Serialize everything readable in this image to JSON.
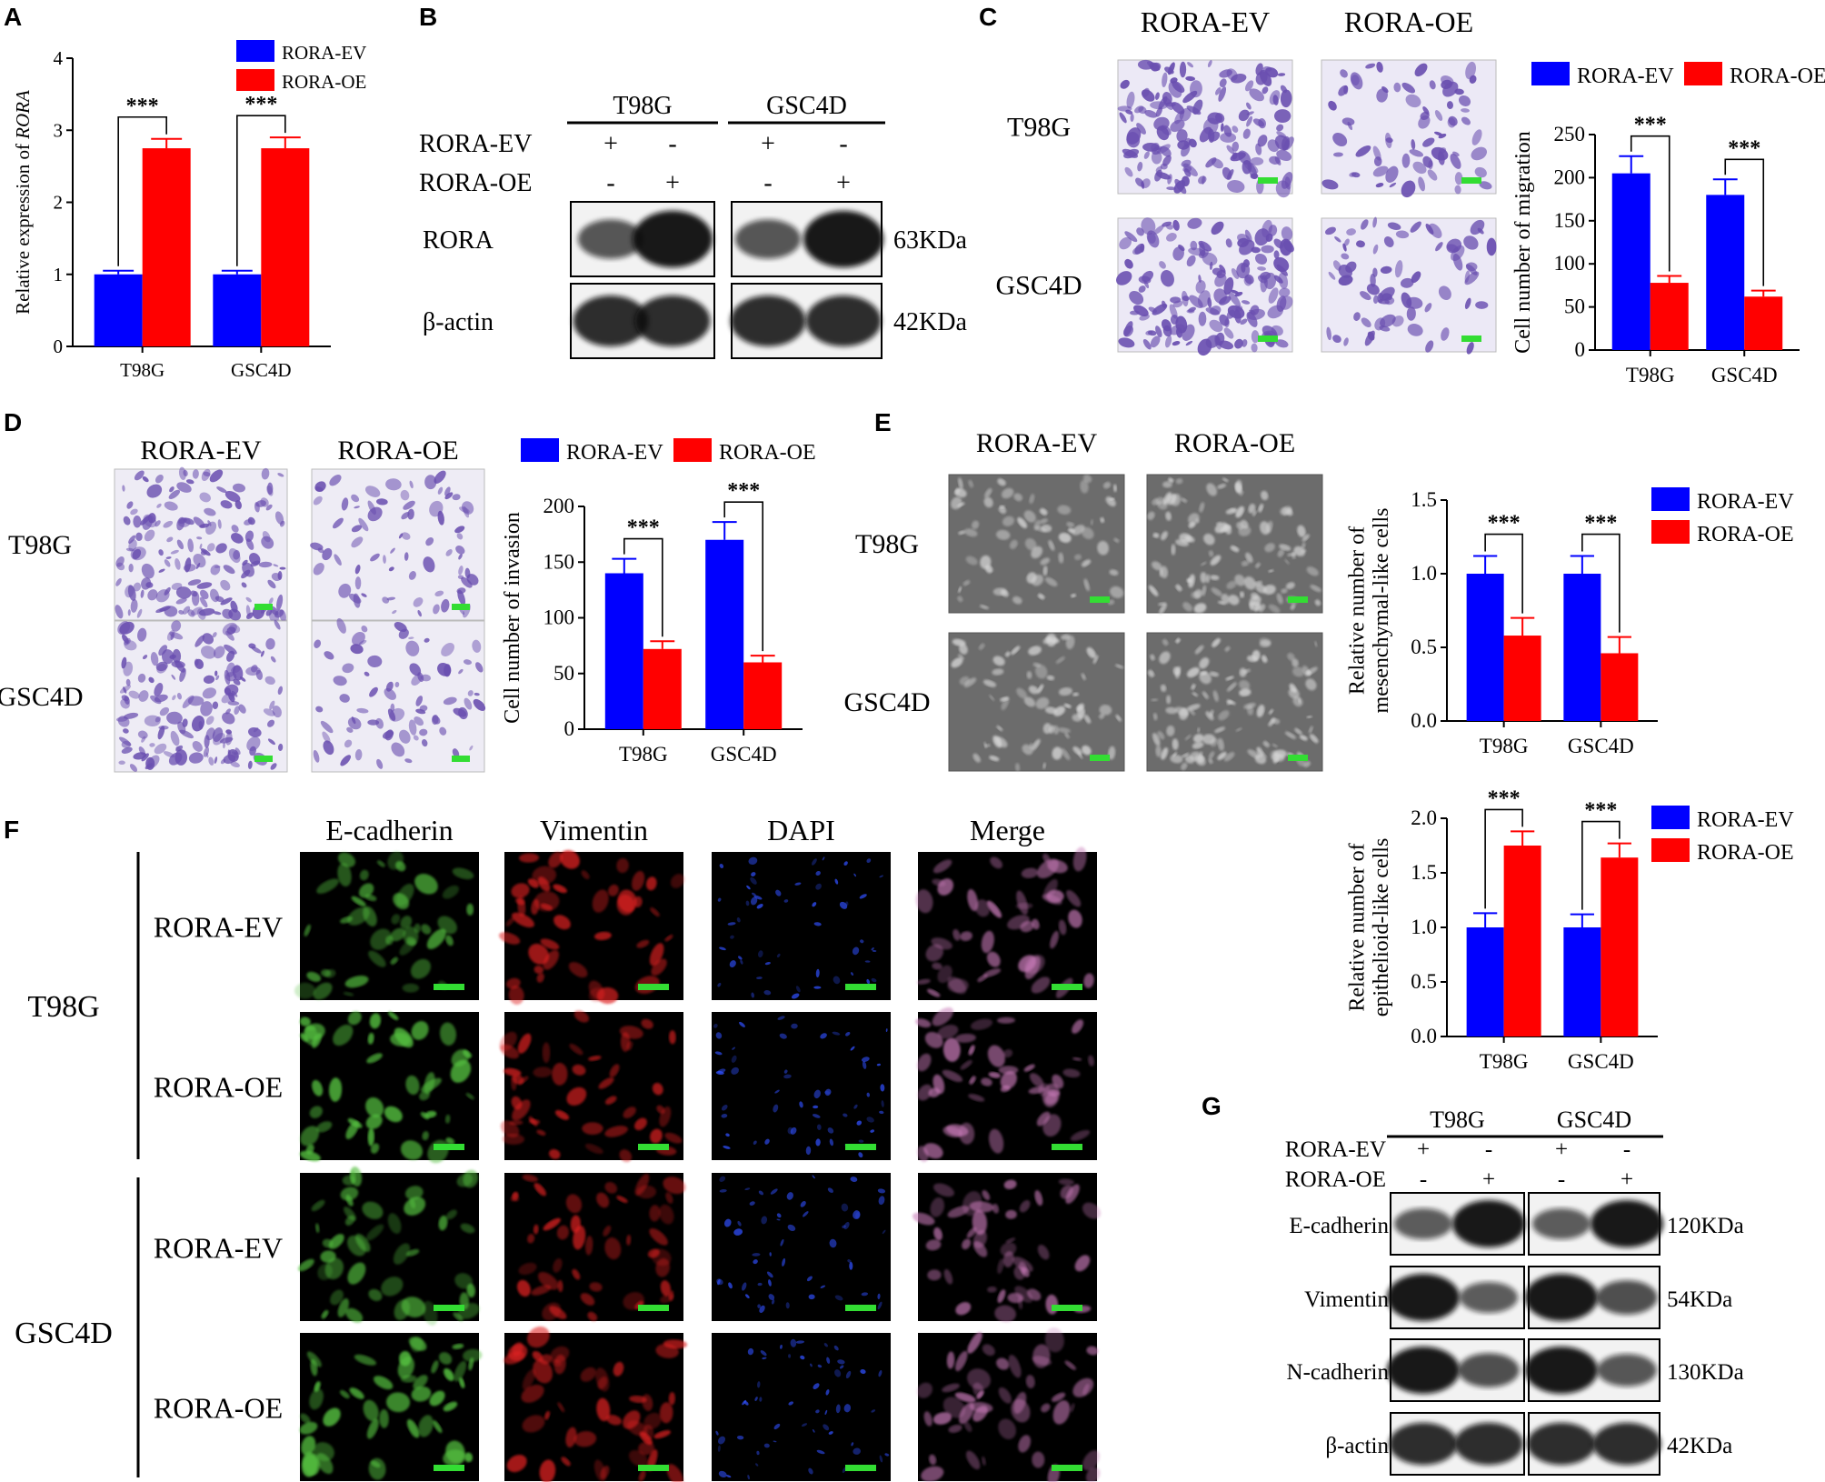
{
  "panel_letters": [
    "A",
    "B",
    "C",
    "D",
    "E",
    "F",
    "G"
  ],
  "colors": {
    "ev": "#0000ff",
    "oe": "#ff0000",
    "scale_bar": "#33dd33",
    "crystal_violet": "#6a4fb0"
  },
  "legend": {
    "ev": "RORA-EV",
    "oe": "RORA-OE"
  },
  "significance": "***",
  "chart_data": [
    {
      "id": "A",
      "type": "bar",
      "categories": [
        "T98G",
        "GSC4D"
      ],
      "series": [
        {
          "name": "RORA-EV",
          "values": [
            1.0,
            1.0
          ],
          "errors": [
            0.05,
            0.05
          ]
        },
        {
          "name": "RORA-OE",
          "values": [
            2.75,
            2.75
          ],
          "errors": [
            0.13,
            0.15
          ]
        }
      ],
      "ylabel_prefix": "Relative expression of ",
      "ylabel_italic": "RORA",
      "ylim": [
        0,
        4
      ],
      "yticks": [
        "0",
        "1",
        "2",
        "3",
        "4"
      ],
      "legend_position": "top"
    },
    {
      "id": "C",
      "type": "bar",
      "categories": [
        "T98G",
        "GSC4D"
      ],
      "series": [
        {
          "name": "RORA-EV",
          "values": [
            205,
            180
          ],
          "errors": [
            20,
            18
          ]
        },
        {
          "name": "RORA-OE",
          "values": [
            78,
            62
          ],
          "errors": [
            8,
            7
          ]
        }
      ],
      "ylabel": "Cell number of migration",
      "ylim": [
        0,
        250
      ],
      "yticks": [
        "0",
        "50",
        "100",
        "150",
        "200",
        "250"
      ],
      "legend_position": "top"
    },
    {
      "id": "D",
      "type": "bar",
      "categories": [
        "T98G",
        "GSC4D"
      ],
      "series": [
        {
          "name": "RORA-EV",
          "values": [
            140,
            170
          ],
          "errors": [
            13,
            16
          ]
        },
        {
          "name": "RORA-OE",
          "values": [
            72,
            60
          ],
          "errors": [
            7,
            6
          ]
        }
      ],
      "ylabel": "Cell number of invasion",
      "ylim": [
        0,
        200
      ],
      "yticks": [
        "0",
        "50",
        "100",
        "150",
        "200"
      ],
      "legend_position": "top"
    },
    {
      "id": "E1",
      "type": "bar",
      "categories": [
        "T98G",
        "GSC4D"
      ],
      "series": [
        {
          "name": "RORA-EV",
          "values": [
            1.0,
            1.0
          ],
          "errors": [
            0.12,
            0.12
          ]
        },
        {
          "name": "RORA-OE",
          "values": [
            0.58,
            0.46
          ],
          "errors": [
            0.12,
            0.11
          ]
        }
      ],
      "ylabel_lines": [
        "Relative number of",
        "mesenchymal-like cells"
      ],
      "ylim": [
        0,
        1.5
      ],
      "yticks": [
        "0.0",
        "0.5",
        "1.0",
        "1.5"
      ],
      "legend_position": "right"
    },
    {
      "id": "E2",
      "type": "bar",
      "categories": [
        "T98G",
        "GSC4D"
      ],
      "series": [
        {
          "name": "RORA-EV",
          "values": [
            1.0,
            1.0
          ],
          "errors": [
            0.13,
            0.12
          ]
        },
        {
          "name": "RORA-OE",
          "values": [
            1.75,
            1.64
          ],
          "errors": [
            0.13,
            0.13
          ]
        }
      ],
      "ylabel_lines": [
        "Relative number of",
        "epithelioid-like cells"
      ],
      "ylim": [
        0,
        2.0
      ],
      "yticks": [
        "0.0",
        "0.5",
        "1.0",
        "1.5",
        "2.0"
      ],
      "legend_position": "right"
    }
  ],
  "panel_b": {
    "groups": [
      "T98G",
      "GSC4D"
    ],
    "rows": [
      {
        "label": "RORA-EV",
        "signs": [
          "+",
          "-",
          "+",
          "-"
        ]
      },
      {
        "label": "RORA-OE",
        "signs": [
          "-",
          "+",
          "-",
          "+"
        ]
      }
    ],
    "blots": [
      {
        "label": "RORA",
        "size": "63KDa",
        "intensity": [
          0.55,
          1.0,
          0.55,
          1.0
        ]
      },
      {
        "label": "β-actin",
        "size": "42KDa",
        "intensity": [
          0.85,
          0.85,
          0.85,
          0.85
        ]
      }
    ]
  },
  "panel_c": {
    "columns": [
      "RORA-EV",
      "RORA-OE"
    ],
    "rows": [
      "T98G",
      "GSC4D"
    ]
  },
  "panel_d": {
    "columns": [
      "RORA-EV",
      "RORA-OE"
    ],
    "rows": [
      "T98G",
      "GSC4D"
    ]
  },
  "panel_e": {
    "columns": [
      "RORA-EV",
      "RORA-OE"
    ],
    "rows": [
      "T98G",
      "GSC4D"
    ]
  },
  "panel_f": {
    "columns": [
      "E-cadherin",
      "Vimentin",
      "DAPI",
      "Merge"
    ],
    "groups": [
      {
        "name": "T98G",
        "rows": [
          "RORA-EV",
          "RORA-OE"
        ]
      },
      {
        "name": "GSC4D",
        "rows": [
          "RORA-EV",
          "RORA-OE"
        ]
      }
    ],
    "channel_colors": [
      "#55c040",
      "#e02020",
      "#3050ff",
      "#c87ab8"
    ]
  },
  "panel_g": {
    "groups": [
      "T98G",
      "GSC4D"
    ],
    "rows": [
      {
        "label": "RORA-EV",
        "signs": [
          "+",
          "-",
          "+",
          "-"
        ]
      },
      {
        "label": "RORA-OE",
        "signs": [
          "-",
          "+",
          "-",
          "+"
        ]
      }
    ],
    "blots": [
      {
        "label": "E-cadherin",
        "size": "120KDa",
        "intensity": [
          0.5,
          1.0,
          0.5,
          1.0
        ]
      },
      {
        "label": "Vimentin",
        "size": "54KDa",
        "intensity": [
          1.0,
          0.5,
          1.0,
          0.6
        ]
      },
      {
        "label": "N-cadherin",
        "size": "130KDa",
        "intensity": [
          1.0,
          0.6,
          1.0,
          0.55
        ]
      },
      {
        "label": "β-actin",
        "size": "42KDa",
        "intensity": [
          0.85,
          0.85,
          0.85,
          0.85
        ]
      }
    ]
  }
}
